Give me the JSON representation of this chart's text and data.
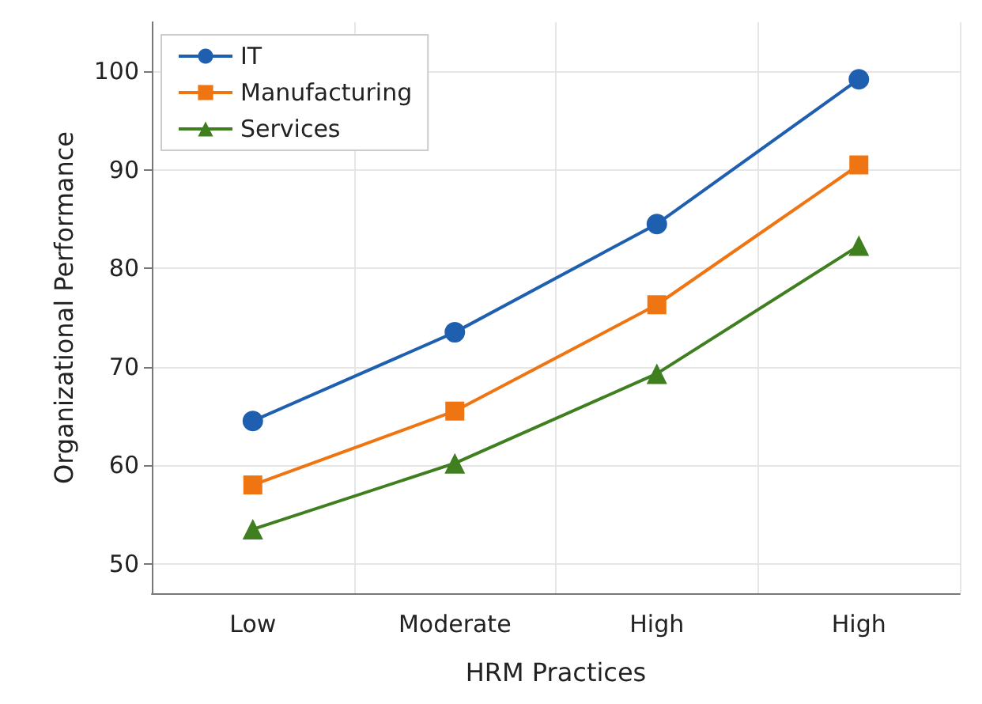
{
  "chart_data": {
    "type": "line",
    "xlabel": "HRM Practices",
    "ylabel": "Organizational Performance",
    "categories": [
      "Low",
      "Moderate",
      "High",
      "High"
    ],
    "series": [
      {
        "name": "IT",
        "color": "#1f5fb0",
        "marker": "circle",
        "values": [
          64.5,
          73.5,
          84.5,
          99.2
        ]
      },
      {
        "name": "Manufacturing",
        "color": "#ef7512",
        "marker": "square",
        "values": [
          58,
          65.5,
          76.3,
          90.5
        ]
      },
      {
        "name": "Services",
        "color": "#3f7f1f",
        "marker": "triangle",
        "values": [
          53.5,
          60.2,
          69.3,
          82.3
        ]
      }
    ],
    "ylim": [
      47,
      105
    ],
    "yticks": [
      50,
      60,
      70,
      80,
      90,
      100
    ],
    "grid": true,
    "legend": "top left",
    "line_style": "solid"
  }
}
